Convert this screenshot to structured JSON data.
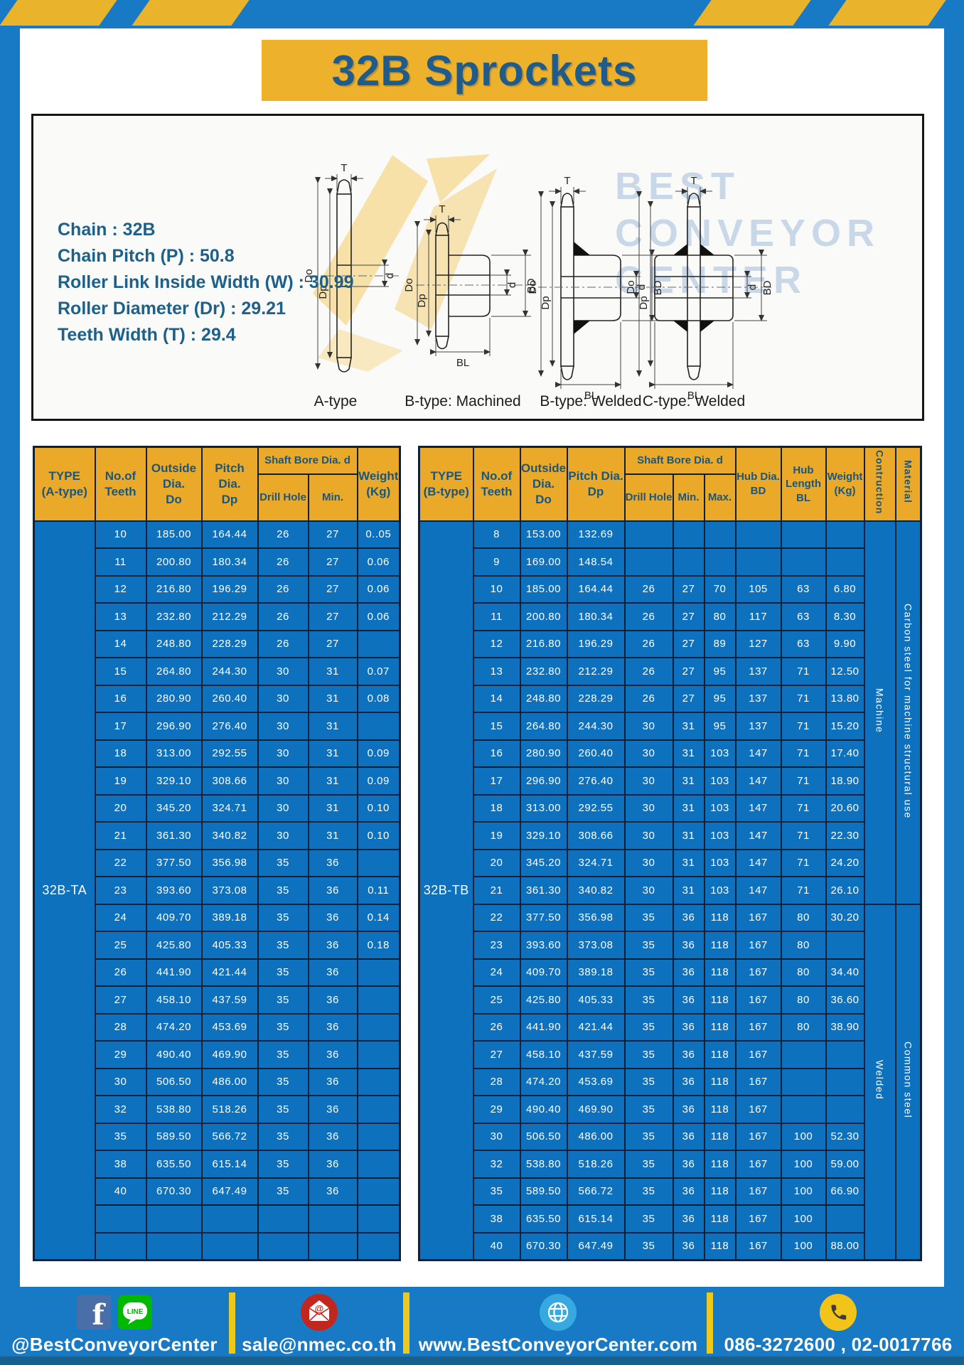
{
  "title": "32B Sprockets",
  "specs": {
    "lines": [
      "Chain : 32B",
      "Chain Pitch (P) : 50.8",
      "Roller Link Inside Width (W) : 30.99",
      "Roller Diameter (Dr) : 29.21",
      "Teeth Width (T) : 29.4"
    ]
  },
  "watermark": {
    "lines": [
      "BEST",
      "CONVEYOR",
      "CENTER"
    ]
  },
  "diagrams": [
    {
      "caption": "A-type"
    },
    {
      "caption": "B-type: Machined"
    },
    {
      "caption": "B-type: Welded"
    },
    {
      "caption": "C-type: Welded"
    }
  ],
  "dim_labels": {
    "t": "T",
    "do": "Do",
    "dp": "Dp",
    "d": "d",
    "bd": "BD",
    "bl": "BL"
  },
  "tables": {
    "left": {
      "head": {
        "type": [
          "TYPE",
          "(A-type)"
        ],
        "teeth": [
          "No.of",
          "Teeth"
        ],
        "outside": [
          "Outside",
          "Dia.",
          "Do"
        ],
        "pitch": [
          "Pitch Dia.",
          "Dp"
        ],
        "shaft_group": "Shaft Bore Dia. d",
        "drill": "Drill Hole",
        "min": "Min.",
        "weight": [
          "Weight",
          "(Kg)"
        ]
      },
      "type_label": "32B-TA",
      "rows": [
        [
          "10",
          "185.00",
          "164.44",
          "26",
          "27",
          "0..05"
        ],
        [
          "11",
          "200.80",
          "180.34",
          "26",
          "27",
          "0.06"
        ],
        [
          "12",
          "216.80",
          "196.29",
          "26",
          "27",
          "0.06"
        ],
        [
          "13",
          "232.80",
          "212.29",
          "26",
          "27",
          "0.06"
        ],
        [
          "14",
          "248.80",
          "228.29",
          "26",
          "27",
          ""
        ],
        [
          "15",
          "264.80",
          "244.30",
          "30",
          "31",
          "0.07"
        ],
        [
          "16",
          "280.90",
          "260.40",
          "30",
          "31",
          "0.08"
        ],
        [
          "17",
          "296.90",
          "276.40",
          "30",
          "31",
          ""
        ],
        [
          "18",
          "313.00",
          "292.55",
          "30",
          "31",
          "0.09"
        ],
        [
          "19",
          "329.10",
          "308.66",
          "30",
          "31",
          "0.09"
        ],
        [
          "20",
          "345.20",
          "324.71",
          "30",
          "31",
          "0.10"
        ],
        [
          "21",
          "361.30",
          "340.82",
          "30",
          "31",
          "0.10"
        ],
        [
          "22",
          "377.50",
          "356.98",
          "35",
          "36",
          ""
        ],
        [
          "23",
          "393.60",
          "373.08",
          "35",
          "36",
          "0.11"
        ],
        [
          "24",
          "409.70",
          "389.18",
          "35",
          "36",
          "0.14"
        ],
        [
          "25",
          "425.80",
          "405.33",
          "35",
          "36",
          "0.18"
        ],
        [
          "26",
          "441.90",
          "421.44",
          "35",
          "36",
          ""
        ],
        [
          "27",
          "458.10",
          "437.59",
          "35",
          "36",
          ""
        ],
        [
          "28",
          "474.20",
          "453.69",
          "35",
          "36",
          ""
        ],
        [
          "29",
          "490.40",
          "469.90",
          "35",
          "36",
          ""
        ],
        [
          "30",
          "506.50",
          "486.00",
          "35",
          "36",
          ""
        ],
        [
          "32",
          "538.80",
          "518.26",
          "35",
          "36",
          ""
        ],
        [
          "35",
          "589.50",
          "566.72",
          "35",
          "36",
          ""
        ],
        [
          "38",
          "635.50",
          "615.14",
          "35",
          "36",
          ""
        ],
        [
          "40",
          "670.30",
          "647.49",
          "35",
          "36",
          ""
        ],
        [
          "",
          "",
          "",
          "",
          "",
          ""
        ],
        [
          "",
          "",
          "",
          "",
          "",
          ""
        ]
      ]
    },
    "right": {
      "head": {
        "type": [
          "TYPE",
          "(B-type)"
        ],
        "teeth": [
          "No.of",
          "Teeth"
        ],
        "outside": [
          "Outside",
          "Dia.",
          "Do"
        ],
        "pitch": [
          "Pitch Dia.",
          "Dp"
        ],
        "shaft_group": "Shaft Bore Dia. d",
        "drill": "Drill Hole",
        "min": "Min.",
        "max": "Max.",
        "hub_dia": [
          "Hub Dia.",
          "BD"
        ],
        "hub_len": [
          "Hub",
          "Length",
          "BL"
        ],
        "weight": [
          "Weight",
          "(Kg)"
        ],
        "construction": "Contruction",
        "material": "Material"
      },
      "type_label": "32B-TB",
      "sections": [
        {
          "construction": "Machine",
          "material": "Carbon steel for machine structural use",
          "span": 14
        },
        {
          "construction": "Welded",
          "material": "Common steel",
          "span": 13
        }
      ],
      "rows": [
        [
          "8",
          "153.00",
          "132.69",
          "",
          "",
          "",
          "",
          "",
          ""
        ],
        [
          "9",
          "169.00",
          "148.54",
          "",
          "",
          "",
          "",
          "",
          ""
        ],
        [
          "10",
          "185.00",
          "164.44",
          "26",
          "27",
          "70",
          "105",
          "63",
          "6.80"
        ],
        [
          "11",
          "200.80",
          "180.34",
          "26",
          "27",
          "80",
          "117",
          "63",
          "8.30"
        ],
        [
          "12",
          "216.80",
          "196.29",
          "26",
          "27",
          "89",
          "127",
          "63",
          "9.90"
        ],
        [
          "13",
          "232.80",
          "212.29",
          "26",
          "27",
          "95",
          "137",
          "71",
          "12.50"
        ],
        [
          "14",
          "248.80",
          "228.29",
          "26",
          "27",
          "95",
          "137",
          "71",
          "13.80"
        ],
        [
          "15",
          "264.80",
          "244.30",
          "30",
          "31",
          "95",
          "137",
          "71",
          "15.20"
        ],
        [
          "16",
          "280.90",
          "260.40",
          "30",
          "31",
          "103",
          "147",
          "71",
          "17.40"
        ],
        [
          "17",
          "296.90",
          "276.40",
          "30",
          "31",
          "103",
          "147",
          "71",
          "18.90"
        ],
        [
          "18",
          "313.00",
          "292.55",
          "30",
          "31",
          "103",
          "147",
          "71",
          "20.60"
        ],
        [
          "19",
          "329.10",
          "308.66",
          "30",
          "31",
          "103",
          "147",
          "71",
          "22.30"
        ],
        [
          "20",
          "345.20",
          "324.71",
          "30",
          "31",
          "103",
          "147",
          "71",
          "24.20"
        ],
        [
          "21",
          "361.30",
          "340.82",
          "30",
          "31",
          "103",
          "147",
          "71",
          "26.10"
        ],
        [
          "22",
          "377.50",
          "356.98",
          "35",
          "36",
          "118",
          "167",
          "80",
          "30.20"
        ],
        [
          "23",
          "393.60",
          "373.08",
          "35",
          "36",
          "118",
          "167",
          "80",
          ""
        ],
        [
          "24",
          "409.70",
          "389.18",
          "35",
          "36",
          "118",
          "167",
          "80",
          "34.40"
        ],
        [
          "25",
          "425.80",
          "405.33",
          "35",
          "36",
          "118",
          "167",
          "80",
          "36.60"
        ],
        [
          "26",
          "441.90",
          "421.44",
          "35",
          "36",
          "118",
          "167",
          "80",
          "38.90"
        ],
        [
          "27",
          "458.10",
          "437.59",
          "35",
          "36",
          "118",
          "167",
          "",
          ""
        ],
        [
          "28",
          "474.20",
          "453.69",
          "35",
          "36",
          "118",
          "167",
          "",
          ""
        ],
        [
          "29",
          "490.40",
          "469.90",
          "35",
          "36",
          "118",
          "167",
          "",
          ""
        ],
        [
          "30",
          "506.50",
          "486.00",
          "35",
          "36",
          "118",
          "167",
          "100",
          "52.30"
        ],
        [
          "32",
          "538.80",
          "518.26",
          "35",
          "36",
          "118",
          "167",
          "100",
          "59.00"
        ],
        [
          "35",
          "589.50",
          "566.72",
          "35",
          "36",
          "118",
          "167",
          "100",
          "66.90"
        ],
        [
          "38",
          "635.50",
          "615.14",
          "35",
          "36",
          "118",
          "167",
          "100",
          ""
        ],
        [
          "40",
          "670.30",
          "647.49",
          "35",
          "36",
          "118",
          "167",
          "100",
          "88.00"
        ]
      ]
    }
  },
  "footer": {
    "fb_letter": "f",
    "line_text": "LINE",
    "sections": [
      {
        "label": "@BestConveyorCenter"
      },
      {
        "label": "sale@nmec.co.th"
      },
      {
        "label": "www.BestConveyorCenter.com"
      },
      {
        "label": "086-3272600 , 02-0017766"
      }
    ]
  },
  "colors": {
    "frame_blue": "#1879c4",
    "stripe_yellow": "#eab32c",
    "banner_yellow": "#edb12c",
    "header_yellow": "#eaa928",
    "cell_blue": "#0e71bd",
    "border_navy": "#0f2037",
    "header_text_navy": "#1a567d",
    "title_navy": "#1f5c8c",
    "divider_yellow": "#eec81d"
  }
}
